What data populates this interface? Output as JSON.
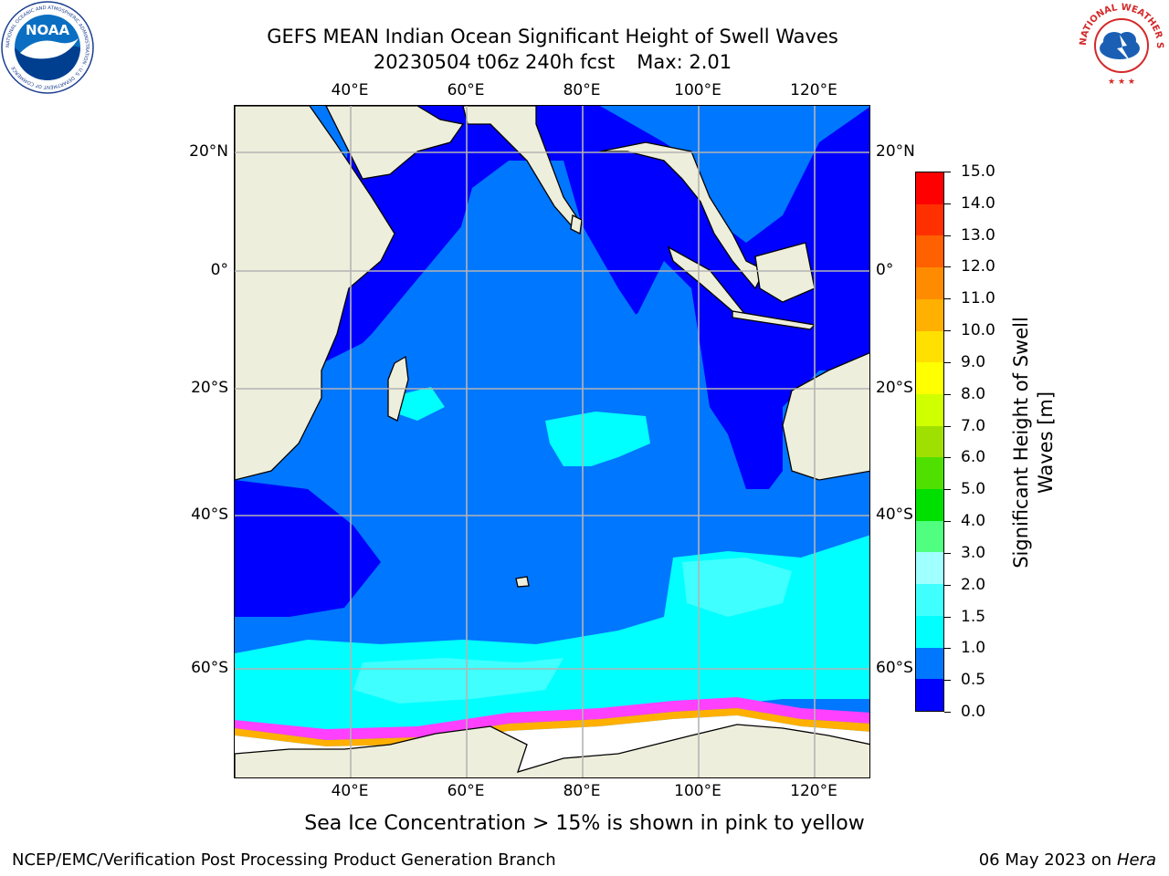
{
  "header": {
    "title_line1": "GEFS MEAN Indian Ocean Significant Height of Swell Waves",
    "title_line2_run": "20230504 t06z 240h fcst",
    "title_line2_max": "Max: 2.01"
  },
  "logos": {
    "noaa_text": "NOAA",
    "noaa_ring": "NATIONAL OCEANIC AND ATMOSPHERIC ADMINISTRATION · U.S. DEPARTMENT OF COMMERCE",
    "nws_ring": "NATIONAL WEATHER SERVICE"
  },
  "map": {
    "lon_labels": [
      "40°E",
      "60°E",
      "80°E",
      "100°E",
      "120°E"
    ],
    "lat_labels": [
      "20°N",
      "0°",
      "20°S",
      "40°S",
      "60°S"
    ],
    "lon_values": [
      40,
      60,
      80,
      100,
      120
    ],
    "lat_values": [
      20,
      0,
      -20,
      -40,
      -60
    ],
    "lon_range": [
      20,
      130
    ],
    "lat_range": [
      -72,
      27
    ],
    "grid": true,
    "colors": {
      "land": "#eeeedc",
      "coast": "#000000",
      "grid": "#b4b4b4",
      "sea_ice_white": "#ffffff",
      "sea_ice_edge": [
        "#ff40ff",
        "#ffb000",
        "#ffe080"
      ]
    }
  },
  "colorbar": {
    "title": "Significant Height of Swell Waves [m]",
    "title_line1": "Significant Height of Swell",
    "title_line2": "Waves [m]",
    "tick_labels": [
      "0.0",
      "0.5",
      "1.0",
      "1.5",
      "2.0",
      "3.0",
      "4.0",
      "5.0",
      "6.0",
      "7.0",
      "8.0",
      "9.0",
      "10.0",
      "11.0",
      "12.0",
      "13.0",
      "14.0",
      "15.0"
    ],
    "colors": [
      "#0000ff",
      "#0077ff",
      "#00ffff",
      "#40ffff",
      "#a0ffff",
      "#50ff80",
      "#00e000",
      "#50e000",
      "#a0e000",
      "#d0ff00",
      "#ffff00",
      "#ffe000",
      "#ffb000",
      "#ff8c00",
      "#ff6000",
      "#ff3000",
      "#ff0000"
    ]
  },
  "footer": {
    "ice_note": "Sea Ice Concentration > 15% is shown in pink to yellow",
    "credit": "NCEP/EMC/Verification Post Processing Product Generation Branch",
    "date": "06 May 2023 on",
    "machine": "Hera"
  }
}
